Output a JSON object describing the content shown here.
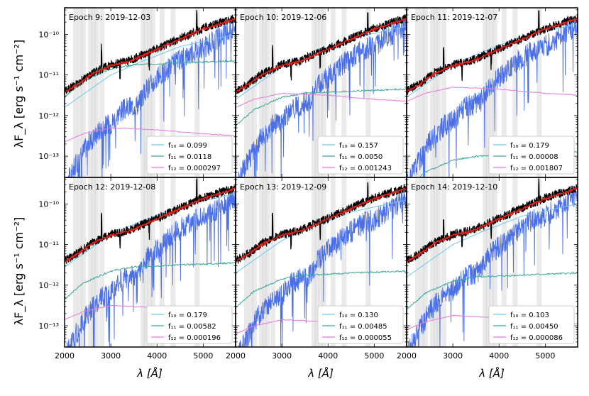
{
  "chart_data": {
    "type": "line",
    "figure": {
      "ylabel": "λF_λ [erg s⁻¹ cm⁻²]",
      "xlabel": "λ [Å]",
      "xlim": [
        2000,
        5700
      ],
      "ylim": [
        3e-14,
        4.5e-10
      ],
      "yscale": "log",
      "xticks": [
        2000,
        3000,
        4000,
        5000
      ],
      "yticks": [
        {
          "value": 1e-13,
          "label": "10⁻¹³"
        },
        {
          "value": 1e-12,
          "label": "10⁻¹²"
        },
        {
          "value": 1e-11,
          "label": "10⁻¹¹"
        },
        {
          "value": 1e-10,
          "label": "10⁻¹⁰"
        }
      ],
      "series_colors": {
        "observed": "#000000",
        "model": "#e8201a",
        "star": "#4a6fe8",
        "f10": "#6cc8e8",
        "f11": "#3aa898",
        "f12": "#e878e0"
      },
      "shaded_bands": [
        2230,
        2330,
        2400,
        2550,
        2620,
        2680,
        2800,
        3690,
        3750,
        3830,
        3900,
        4100,
        4340,
        4860
      ]
    },
    "panels": [
      {
        "title": "Epoch 9: 2019-12-03",
        "legend": [
          {
            "label": "f₁₀ = 0.099"
          },
          {
            "label": "f₁₁ = 0.0118"
          },
          {
            "label": "f₁₂ = 0.000297"
          }
        ]
      },
      {
        "title": "Epoch 10: 2019-12-06",
        "legend": [
          {
            "label": "f₁₀ = 0.157"
          },
          {
            "label": "f₁₁ = 0.0050"
          },
          {
            "label": "f₁₂ = 0.001243"
          }
        ]
      },
      {
        "title": "Epoch 11: 2019-12-07",
        "legend": [
          {
            "label": "f₁₀ = 0.179"
          },
          {
            "label": "f₁₁ = 0.00008"
          },
          {
            "label": "f₁₂ = 0.001807"
          }
        ]
      },
      {
        "title": "Epoch 12: 2019-12-08",
        "legend": [
          {
            "label": "f₁₀ = 0.179"
          },
          {
            "label": "f₁₁ = 0.00582"
          },
          {
            "label": "f₁₂ = 0.000196"
          }
        ]
      },
      {
        "title": "Epoch 13: 2019-12-09",
        "legend": [
          {
            "label": "f₁₀ = 0.130"
          },
          {
            "label": "f₁₁ = 0.00485"
          },
          {
            "label": "f₁₂ = 0.000055"
          }
        ]
      },
      {
        "title": "Epoch 14: 2019-12-10",
        "legend": [
          {
            "label": "f₁₀ = 0.103"
          },
          {
            "label": "f₁₁ = 0.00450"
          },
          {
            "label": "f₁₂ = 0.000086"
          }
        ]
      }
    ]
  }
}
